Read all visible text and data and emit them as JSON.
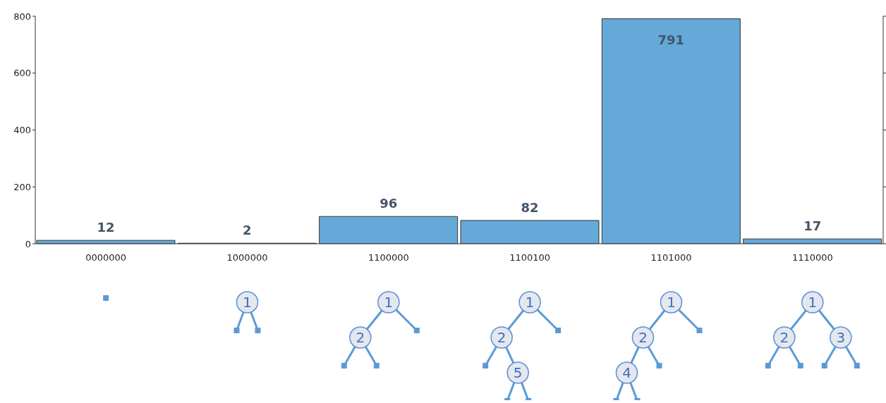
{
  "chart_data": {
    "type": "bar",
    "categories": [
      "0000000",
      "1000000",
      "1100000",
      "1100100",
      "1101000",
      "1110000"
    ],
    "values": [
      12,
      2,
      96,
      82,
      791,
      17
    ],
    "color": "#64a9d8",
    "ylim": [
      0,
      800
    ],
    "yticks": [
      0,
      200,
      400,
      600,
      800
    ],
    "data_labels": true,
    "annotations": [
      "1",
      "1",
      "2",
      "1",
      "2",
      "5",
      "1",
      "2",
      "4",
      "1",
      "2",
      "3"
    ]
  }
}
